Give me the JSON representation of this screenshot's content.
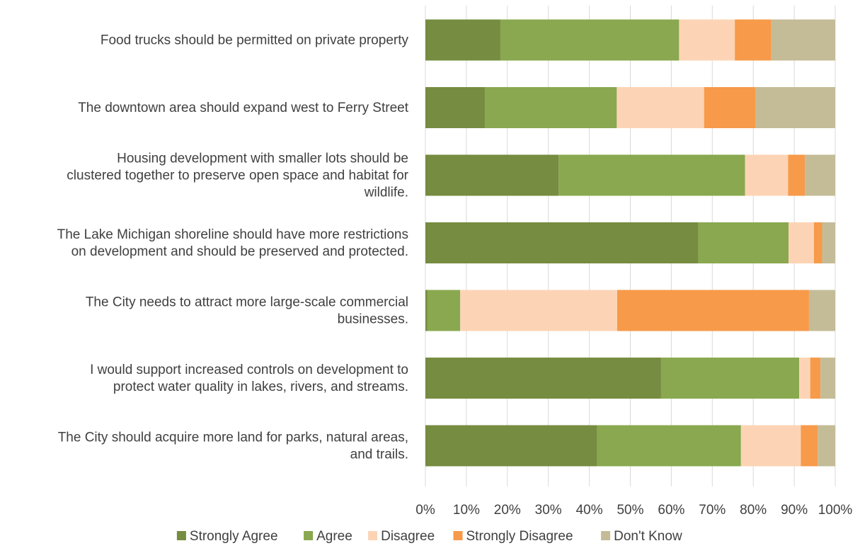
{
  "chart_data": {
    "type": "bar",
    "orientation": "horizontal",
    "stacking": "percent",
    "title": "",
    "xlabel": "",
    "ylabel": "",
    "xlim": [
      0,
      100
    ],
    "grid": true,
    "legend_position": "bottom",
    "x_ticks": [
      "0%",
      "10%",
      "20%",
      "30%",
      "40%",
      "50%",
      "60%",
      "70%",
      "80%",
      "90%",
      "100%"
    ],
    "categories": [
      [
        "Food trucks should be permitted on private property"
      ],
      [
        "The downtown area should expand west to Ferry Street"
      ],
      [
        "Housing development with smaller lots should be",
        "clustered together to preserve open space and habitat for",
        "wildlife."
      ],
      [
        "The Lake Michigan shoreline should have more restrictions",
        "on development and should be preserved and protected."
      ],
      [
        "The City needs to attract more large-scale commercial",
        "businesses."
      ],
      [
        "I would support increased controls on development to",
        "protect water quality in lakes, rivers, and streams."
      ],
      [
        "The City should acquire more land for parks, natural areas,",
        "and trails."
      ]
    ],
    "series": [
      {
        "name": "Strongly Agree",
        "color": "#768c40",
        "values": [
          18.3,
          14.5,
          32.5,
          66.6,
          0.5,
          57.5,
          41.9
        ]
      },
      {
        "name": "Agree",
        "color": "#8aa84f",
        "values": [
          43.6,
          32.2,
          45.5,
          22.0,
          8.0,
          33.7,
          35.1
        ]
      },
      {
        "name": "Disagree",
        "color": "#fcd4b5",
        "values": [
          13.6,
          21.3,
          10.5,
          6.2,
          38.3,
          2.7,
          14.6
        ]
      },
      {
        "name": "Strongly Disagree",
        "color": "#f79a4a",
        "values": [
          8.9,
          12.6,
          4.1,
          2.0,
          46.8,
          2.5,
          4.1
        ]
      },
      {
        "name": "Don't Know",
        "color": "#c4bc97",
        "values": [
          15.6,
          19.4,
          7.4,
          3.2,
          6.4,
          3.6,
          4.3
        ]
      }
    ]
  }
}
